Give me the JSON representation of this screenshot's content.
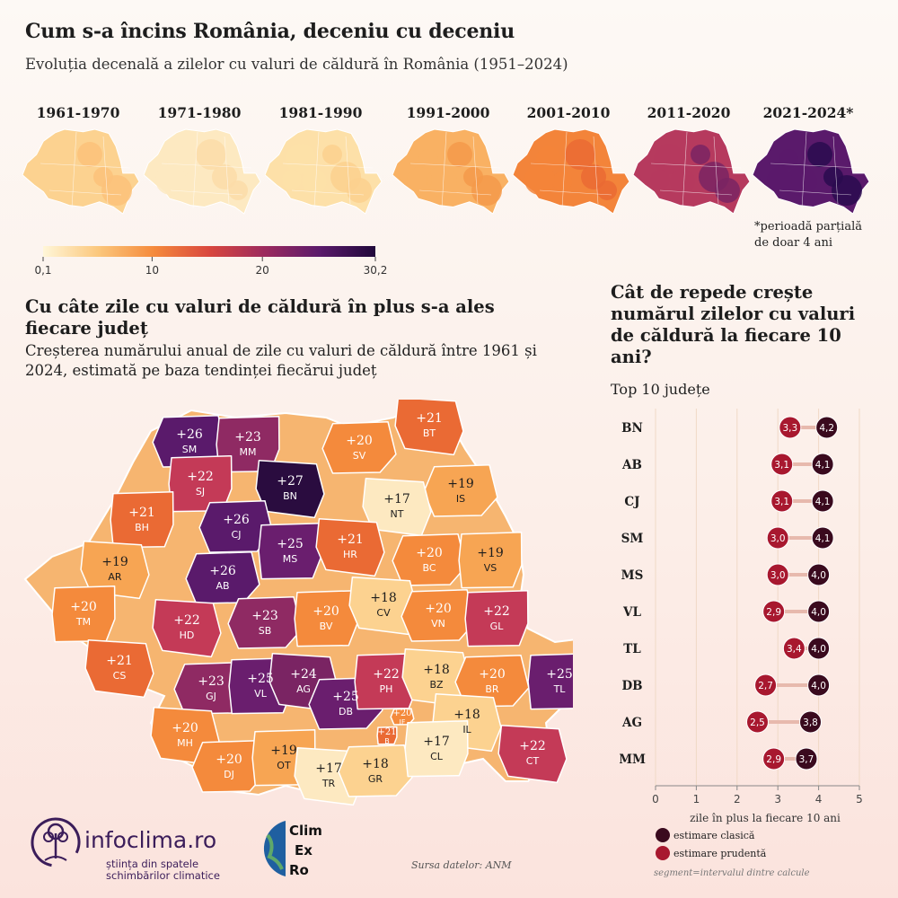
{
  "title": "Cum s-a încins România, deceniu cu deceniu",
  "subtitle": "Evoluția decenală a zilelor cu valuri de căldură în România (1951–2024)",
  "decades": [
    {
      "label": "1961-1970",
      "base": "#fcd290",
      "accent": "#fbc27a"
    },
    {
      "label": "1971-1980",
      "base": "#fde9c1",
      "accent": "#fbdca8"
    },
    {
      "label": "1981-1990",
      "base": "#fde0a8",
      "accent": "#fbd08e"
    },
    {
      "label": "1991-2000",
      "base": "#f9b163",
      "accent": "#f59a4a"
    },
    {
      "label": "2001-2010",
      "base": "#f3843a",
      "accent": "#ea6a34"
    },
    {
      "label": "2011-2020",
      "base": "#b63a5e",
      "accent": "#7a2463"
    },
    {
      "label": "2021-2024*",
      "base": "#5a1a6b",
      "accent": "#2a0c4f"
    }
  ],
  "partial_note": [
    "*perioadă parțială",
    "de doar 4 ani"
  ],
  "legend": {
    "ticks": [
      "0,1",
      "10",
      "20",
      "30,2"
    ],
    "colors": [
      "#fff6d8",
      "#fbc77c",
      "#f58a3c",
      "#d9473e",
      "#9c2a5e",
      "#5a1a6b",
      "#20083a"
    ]
  },
  "section2": {
    "title": "Cu câte zile cu valuri de căldură în plus s-a ales fiecare județ",
    "subtitle": "Creșterea numărului anual de zile cu valuri de căldură între 1961 și 2024, estimată pe baza tendinței fiecărui județ"
  },
  "counties": [
    {
      "code": "SM",
      "value": "+26",
      "color": "#5a1a6b"
    },
    {
      "code": "MM",
      "value": "+23",
      "color": "#8f2a63"
    },
    {
      "code": "BT",
      "value": "+21",
      "color": "#ea6a34"
    },
    {
      "code": "SV",
      "value": "+20",
      "color": "#f48a3c"
    },
    {
      "code": "SJ",
      "value": "+22",
      "color": "#c43a57"
    },
    {
      "code": "BN",
      "value": "+27",
      "color": "#2a0c3f"
    },
    {
      "code": "IS",
      "value": "+19",
      "color": "#f7a553"
    },
    {
      "code": "BH",
      "value": "+21",
      "color": "#ea6a34"
    },
    {
      "code": "NT",
      "value": "+17",
      "color": "#fde9c1"
    },
    {
      "code": "CJ",
      "value": "+26",
      "color": "#5a1a6b"
    },
    {
      "code": "MS",
      "value": "+25",
      "color": "#6a1e6e"
    },
    {
      "code": "HR",
      "value": "+21",
      "color": "#ea6a34"
    },
    {
      "code": "BC",
      "value": "+20",
      "color": "#f48a3c"
    },
    {
      "code": "VS",
      "value": "+19",
      "color": "#f7a553"
    },
    {
      "code": "AR",
      "value": "+19",
      "color": "#f7a553"
    },
    {
      "code": "AB",
      "value": "+26",
      "color": "#5a1a6b"
    },
    {
      "code": "TM",
      "value": "+20",
      "color": "#f48a3c"
    },
    {
      "code": "HD",
      "value": "+22",
      "color": "#c43a57"
    },
    {
      "code": "SB",
      "value": "+23",
      "color": "#8f2a63"
    },
    {
      "code": "BV",
      "value": "+20",
      "color": "#f48a3c"
    },
    {
      "code": "CV",
      "value": "+18",
      "color": "#fcd290"
    },
    {
      "code": "VN",
      "value": "+20",
      "color": "#f48a3c"
    },
    {
      "code": "GL",
      "value": "+22",
      "color": "#c43a57"
    },
    {
      "code": "CS",
      "value": "+21",
      "color": "#ea6a34"
    },
    {
      "code": "GJ",
      "value": "+23",
      "color": "#8f2a63"
    },
    {
      "code": "VL",
      "value": "+25",
      "color": "#6a1e6e"
    },
    {
      "code": "AG",
      "value": "+24",
      "color": "#7a2463"
    },
    {
      "code": "DB",
      "value": "+25",
      "color": "#6a1e6e"
    },
    {
      "code": "PH",
      "value": "+22",
      "color": "#c43a57"
    },
    {
      "code": "BZ",
      "value": "+18",
      "color": "#fcd290"
    },
    {
      "code": "BR",
      "value": "+20",
      "color": "#f48a3c"
    },
    {
      "code": "TL",
      "value": "+25",
      "color": "#6a1e6e"
    },
    {
      "code": "MH",
      "value": "+20",
      "color": "#f48a3c"
    },
    {
      "code": "IF",
      "value": "+20",
      "color": "#f48a3c"
    },
    {
      "code": "B",
      "value": "+21",
      "color": "#ea6a34"
    },
    {
      "code": "IL",
      "value": "+18",
      "color": "#fcd290"
    },
    {
      "code": "DJ",
      "value": "+20",
      "color": "#f48a3c"
    },
    {
      "code": "OT",
      "value": "+19",
      "color": "#f7a553"
    },
    {
      "code": "TR",
      "value": "+17",
      "color": "#fde9c1"
    },
    {
      "code": "GR",
      "value": "+18",
      "color": "#fcd290"
    },
    {
      "code": "CL",
      "value": "+17",
      "color": "#fde9c1"
    },
    {
      "code": "CT",
      "value": "+22",
      "color": "#c43a57"
    }
  ],
  "section3": {
    "title": "Cât de repede crește numărul zilelor cu valuri de căldură la fiecare 10 ani?",
    "subtitle": "Top 10 județe"
  },
  "chart_data": {
    "type": "dot",
    "categories": [
      "BN",
      "AB",
      "CJ",
      "SM",
      "MS",
      "VL",
      "TL",
      "DB",
      "AG",
      "MM"
    ],
    "series": [
      {
        "name": "estimare clasică",
        "color": "#3a0a1e",
        "values": [
          4.2,
          4.1,
          4.1,
          4.1,
          4.0,
          4.0,
          4.0,
          4.0,
          3.8,
          3.7
        ]
      },
      {
        "name": "estimare prudentă",
        "color": "#a8182f",
        "values": [
          3.3,
          3.1,
          3.1,
          3.0,
          3.0,
          2.9,
          3.4,
          2.7,
          2.5,
          2.9
        ]
      }
    ],
    "value_labels": {
      "estimare clasică": [
        "4,2",
        "4,1",
        "4,1",
        "4,1",
        "4,0",
        "4,0",
        "4,0",
        "4,0",
        "3,8",
        "3,7"
      ],
      "estimare prudentă": [
        "3,3",
        "3,1",
        "3,1",
        "3,0",
        "3,0",
        "2,9",
        "3,4",
        "2,7",
        "2,5",
        "2,9"
      ]
    },
    "xlim": [
      0,
      5
    ],
    "xticks": [
      "0",
      "1",
      "2",
      "3",
      "4",
      "5"
    ],
    "xlabel": "zile în plus la fiecare 10 ani",
    "note": "segment=intervalul dintre calcule"
  },
  "logos": {
    "infoclima_name": "infoclima.ro",
    "infoclima_tagline": [
      "știința din spatele",
      "schimbărilor climatice"
    ],
    "climexro": [
      "Clim",
      "Ex",
      "Ro"
    ]
  },
  "source": "Sursa datelor: ANM"
}
